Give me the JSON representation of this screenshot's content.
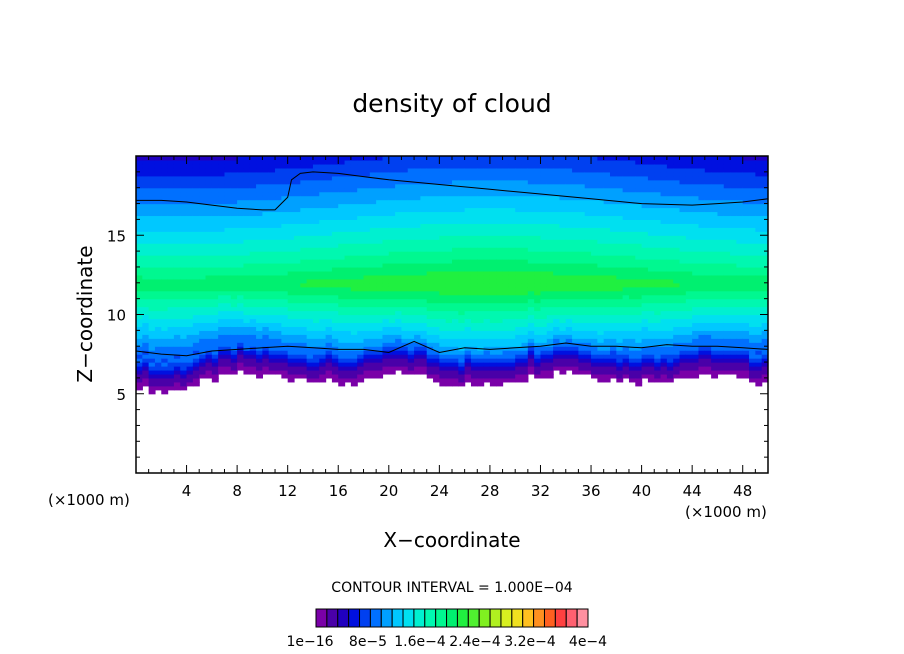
{
  "chart_data": {
    "type": "heatmap",
    "title": "density of cloud",
    "xlabel": "X−coordinate",
    "ylabel": "Z−coordinate",
    "x_unit_left": "(×1000 m)",
    "x_unit_right": "(×1000 m)",
    "xlim": [
      0,
      50
    ],
    "ylim": [
      0,
      20
    ],
    "x_ticks": [
      4,
      8,
      12,
      16,
      20,
      24,
      28,
      32,
      36,
      40,
      44,
      48
    ],
    "y_ticks": [
      5,
      10,
      15
    ],
    "x_minor_step": 1,
    "y_minor_step": 1,
    "grid": false,
    "colorbar": {
      "label": "CONTOUR INTERVAL = 1.000E−04",
      "tick_labels": [
        "1e−16",
        "8e−5",
        "1.6e−4",
        "2.4e−4",
        "3.2e−4",
        "4e−4"
      ],
      "colors": [
        "#7a00a8",
        "#4a00a8",
        "#2000c0",
        "#0010e0",
        "#0040f0",
        "#0070ff",
        "#00a0ff",
        "#00c8ff",
        "#00e0f0",
        "#00f0d0",
        "#00f8b0",
        "#00f890",
        "#00f070",
        "#20f040",
        "#50f030",
        "#80f020",
        "#b0f020",
        "#d8f020",
        "#f0e020",
        "#ffc020",
        "#ff9020",
        "#ff6020",
        "#ff4040",
        "#ff6070",
        "#ff90a0"
      ],
      "interval": 0.0001
    },
    "contour_levels": [
      0.0001
    ],
    "cloud_base_profile": {
      "x": [
        0,
        2,
        4,
        6,
        8,
        10,
        12,
        14,
        16,
        18,
        20,
        22,
        24,
        26,
        28,
        30,
        32,
        34,
        36,
        38,
        40,
        42,
        44,
        46,
        48,
        50
      ],
      "z": [
        5.6,
        5.1,
        5.4,
        5.9,
        6.3,
        6.2,
        6.0,
        5.9,
        5.7,
        5.7,
        6.2,
        6.3,
        5.8,
        5.6,
        5.5,
        5.9,
        6.2,
        6.5,
        6.1,
        5.9,
        5.8,
        5.9,
        6.1,
        6.2,
        5.9,
        5.8
      ]
    },
    "lower_contour_profile": {
      "x": [
        0,
        2,
        4,
        6,
        8,
        10,
        12,
        14,
        16,
        18,
        20,
        22,
        24,
        26,
        28,
        30,
        32,
        34,
        36,
        38,
        40,
        42,
        44,
        46,
        48,
        50
      ],
      "z": [
        7.7,
        7.5,
        7.4,
        7.7,
        7.8,
        7.9,
        8.0,
        7.9,
        7.8,
        7.8,
        7.6,
        8.3,
        7.6,
        7.9,
        7.8,
        7.9,
        8.0,
        8.2,
        8.0,
        8.0,
        7.9,
        8.1,
        8.0,
        8.0,
        7.9,
        7.8
      ]
    },
    "upper_contour_profile": {
      "x": [
        0,
        2,
        4,
        6,
        8,
        10,
        11,
        12,
        12.3,
        13,
        14,
        16,
        18,
        20,
        24,
        28,
        32,
        36,
        40,
        44,
        46,
        48,
        50
      ],
      "z": [
        17.2,
        17.2,
        17.1,
        16.9,
        16.7,
        16.6,
        16.6,
        17.4,
        18.5,
        18.9,
        19.0,
        18.9,
        18.7,
        18.5,
        18.2,
        17.9,
        17.6,
        17.3,
        17.0,
        16.9,
        17.0,
        17.1,
        17.3
      ]
    },
    "peak_density_height": 12,
    "peak_density_level_index": 13
  }
}
